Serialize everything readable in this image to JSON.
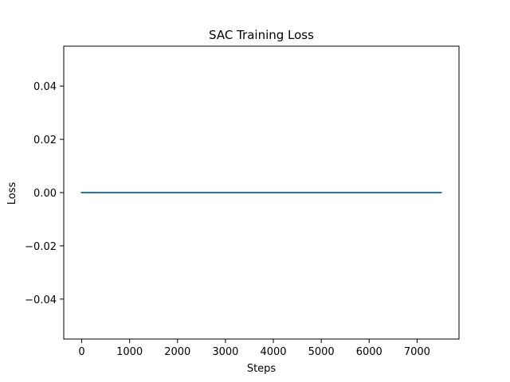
{
  "chart_data": {
    "type": "line",
    "title": "SAC Training Loss",
    "xlabel": "Steps",
    "ylabel": "Loss",
    "xlim": [
      -375,
      7875
    ],
    "ylim": [
      -0.055,
      0.055
    ],
    "xticks": [
      0,
      1000,
      2000,
      3000,
      4000,
      5000,
      6000,
      7000
    ],
    "xtick_labels": [
      "0",
      "1000",
      "2000",
      "3000",
      "4000",
      "5000",
      "6000",
      "7000"
    ],
    "yticks": [
      -0.04,
      -0.02,
      0.0,
      0.02,
      0.04
    ],
    "ytick_labels": [
      "−0.04",
      "−0.02",
      "0.00",
      "0.02",
      "0.04"
    ],
    "grid": false,
    "legend": "none",
    "series": [
      {
        "color": "#1f77b4",
        "x": [
          0,
          7500
        ],
        "y": [
          0.0,
          0.0
        ]
      }
    ]
  }
}
